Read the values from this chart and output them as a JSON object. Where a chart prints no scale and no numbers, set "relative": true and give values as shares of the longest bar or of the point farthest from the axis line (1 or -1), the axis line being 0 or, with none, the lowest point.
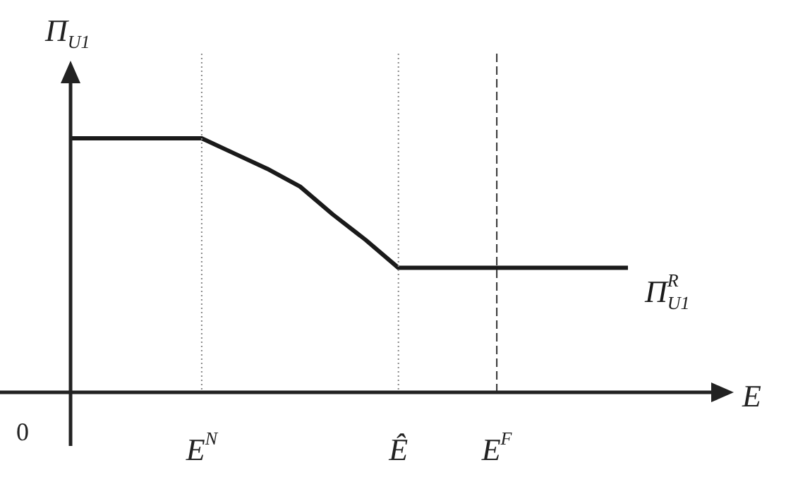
{
  "chart_data": {
    "type": "line",
    "relative": true,
    "xlabel": "E",
    "ylabel": "Π$_{U1}$",
    "annotations": [
      "0"
    ],
    "categories": [
      null,
      null,
      null,
      null,
      "E$^{N}$",
      null,
      null,
      null,
      null,
      null,
      "Ê",
      null,
      null,
      "E$^{F}$",
      null,
      null,
      null,
      null
    ],
    "series": [
      {
        "name": "Π$^{R}$$_{U1}$",
        "color": "#1a1a1a",
        "values": [
          1,
          1,
          1,
          1,
          1,
          0.94,
          0.88,
          0.81,
          0.7,
          0.6,
          0.49,
          0.49,
          0.49,
          0.49,
          0.49,
          0.49,
          0.49,
          0.49
        ]
      }
    ],
    "ref_lines": [
      {
        "axis": "x",
        "value": "E$^{N}$",
        "line_style": "dotted",
        "color": "#888888"
      },
      {
        "axis": "x",
        "value": "Ê",
        "line_style": "dotted",
        "color": "#888888"
      },
      {
        "axis": "x",
        "value": "E$^{F}$",
        "line_style": "dashed",
        "color": "#333333"
      }
    ]
  }
}
